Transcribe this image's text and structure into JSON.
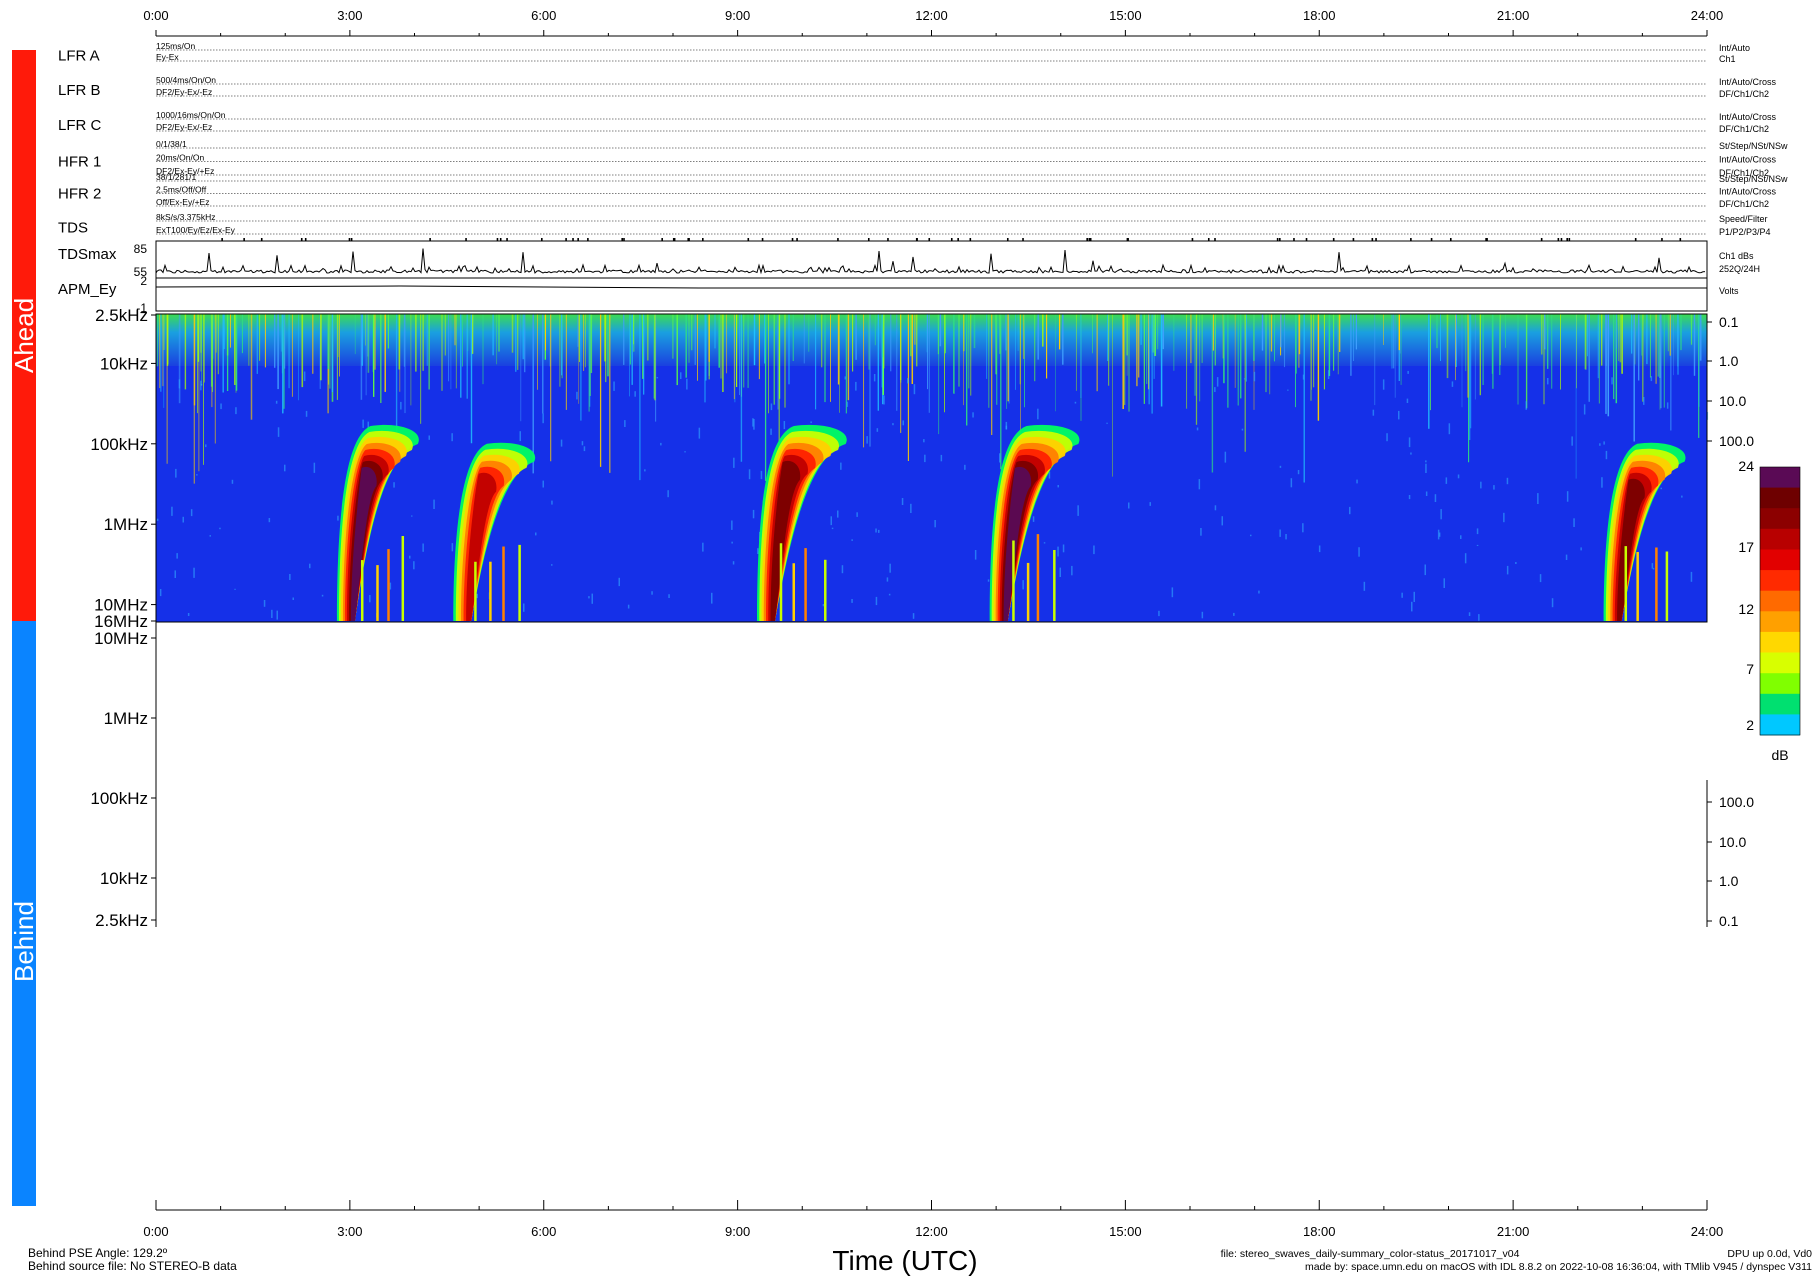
{
  "time_axis": {
    "ticks": [
      "0:00",
      "3:00",
      "6:00",
      "9:00",
      "12:00",
      "15:00",
      "18:00",
      "21:00",
      "24:00"
    ],
    "xlabel": "Time (UTC)"
  },
  "side_bars": {
    "ahead": {
      "label": "Ahead",
      "color": "#ff1a0a"
    },
    "behind": {
      "label": "Behind",
      "color": "#0a84ff"
    }
  },
  "status_rows": [
    {
      "name": "LFR A",
      "left": [
        "125ms/On",
        "Ey-Ex"
      ],
      "right": [
        "Int/Auto",
        "Ch1"
      ]
    },
    {
      "name": "LFR B",
      "left": [
        "500/4ms/On/On",
        "DF2/Ey-Ex/-Ez"
      ],
      "right": [
        "Int/Auto/Cross",
        "DF/Ch1/Ch2"
      ]
    },
    {
      "name": "LFR C",
      "left": [
        "1000/16ms/On/On",
        "DF2/Ey-Ex/-Ez"
      ],
      "right": [
        "Int/Auto/Cross",
        "DF/Ch1/Ch2"
      ]
    },
    {
      "name": "HFR 1",
      "left": [
        "0/1/38/1",
        "20ms/On/On",
        "DF2/Ex-Ey/+Ez"
      ],
      "right": [
        "St/Step/NSt/NSw",
        "Int/Auto/Cross",
        "DF/Ch1/Ch2"
      ]
    },
    {
      "name": "HFR 2",
      "left": [
        "38/1/281/1",
        "2.5ms/Off/Off",
        "Off/Ex-Ey/+Ez"
      ],
      "right": [
        "St/Step/NSt/NSw",
        "Int/Auto/Cross",
        "DF/Ch1/Ch2"
      ]
    },
    {
      "name": "TDS",
      "left": [
        "8kS/s/3.375kHz",
        "ExT100/Ey/Ez/Ex-Ey"
      ],
      "right": [
        "Speed/Filter",
        "P1/P2/P3/P4"
      ]
    }
  ],
  "tdsmax": {
    "label": "TDSmax",
    "ticks": [
      "85",
      "55"
    ],
    "right": [
      "Ch1 dBs",
      "252Q/24H"
    ]
  },
  "apm": {
    "label": "APM_Ey",
    "ticks": [
      "2",
      "-1"
    ],
    "right": "Volts"
  },
  "ahead_panel": {
    "freq_labels": [
      "2.5kHz",
      "10kHz",
      "100kHz",
      "1MHz",
      "10MHz",
      "16MHz"
    ],
    "right_labels": [
      "0.1",
      "1.0",
      "10.0",
      "100.0"
    ]
  },
  "behind_panel": {
    "freq_labels": [
      "10MHz",
      "1MHz",
      "100kHz",
      "10kHz",
      "2.5kHz"
    ],
    "right_labels": [
      "100.0",
      "10.0",
      "1.0",
      "0.1"
    ]
  },
  "colorbar": {
    "ticks": [
      "24",
      "17",
      "12",
      "7",
      "2"
    ],
    "unit": "dB",
    "colors": [
      "#5a0a55",
      "#6e0000",
      "#8c0000",
      "#b80000",
      "#e20000",
      "#ff2a00",
      "#ff6a00",
      "#ffa000",
      "#ffd800",
      "#d8ff00",
      "#80ff00",
      "#00e070",
      "#00c8ff"
    ]
  },
  "footer": {
    "left_line1": "Behind PSE Angle:  129.2º",
    "left_line2": "Behind source file: No STEREO-B data",
    "file_line": "file: stereo_swaves_daily-summary_color-status_20171017_v04",
    "made_line": "made by: space.umn.edu on macOS with IDL 8.8.2 on 2022-10-08 16:36:04, with TMlib V945 / dynspec V311",
    "dpu_line": "DPU up 0.0d, Vd0"
  },
  "chart_data": {
    "type": "heatmap",
    "xlabel": "Time (UTC)",
    "x_unit": "hours UTC",
    "xlim": [
      0,
      24
    ],
    "y_scale": "log",
    "ylim_hz": [
      2500,
      16000000
    ],
    "colorbar_range_db": [
      2,
      24
    ],
    "background_level_db": 2,
    "radio_bursts": [
      {
        "start_hour": 2.8,
        "peak_hour": 3.1,
        "max_db": 24,
        "top_freq_hz": 60000
      },
      {
        "start_hour": 4.6,
        "peak_hour": 4.9,
        "max_db": 16,
        "top_freq_hz": 100000
      },
      {
        "start_hour": 9.3,
        "peak_hour": 9.7,
        "max_db": 20,
        "top_freq_hz": 60000
      },
      {
        "start_hour": 12.9,
        "peak_hour": 13.3,
        "max_db": 24,
        "top_freq_hz": 60000
      },
      {
        "start_hour": 22.4,
        "peak_hour": 22.7,
        "max_db": 20,
        "top_freq_hz": 100000
      }
    ],
    "behind_panel": "No STEREO-B data"
  }
}
